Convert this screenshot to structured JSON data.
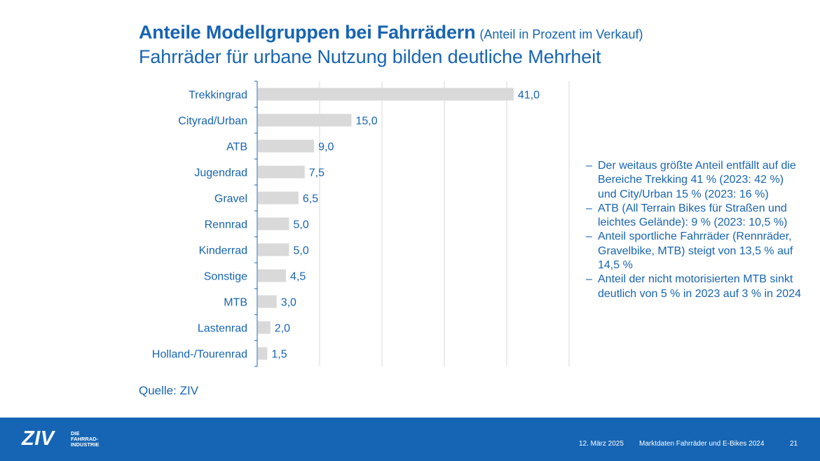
{
  "title": "Anteile Modellgruppen bei Fahrrädern",
  "title_note": "(Anteil in Prozent im Verkauf)",
  "subtitle": "Fahrräder für urbane Nutzung bilden deutliche Mehrheit",
  "chart_data": {
    "type": "bar",
    "orientation": "horizontal",
    "categories": [
      "Trekkingrad",
      "Cityrad/Urban",
      "ATB",
      "Jugendrad",
      "Gravel",
      "Rennrad",
      "Kinderrad",
      "Sonstige",
      "MTB",
      "Lastenrad",
      "Holland-/Tourenrad"
    ],
    "values": [
      41.0,
      15.0,
      9.0,
      7.5,
      6.5,
      5.0,
      5.0,
      4.5,
      3.0,
      2.0,
      1.5
    ],
    "data_labels": [
      "41,0",
      "15,0",
      "9,0",
      "7,5",
      "6,5",
      "5,0",
      "5,0",
      "4,5",
      "3,0",
      "2,0",
      "1,5"
    ],
    "xlim": [
      0,
      50
    ],
    "grid": true,
    "bar_color": "#d9d9d9",
    "label_color": "#1764b2",
    "axis_color": "#1764b2"
  },
  "bullets": [
    "Der weitaus größte Anteil entfällt auf die Bereiche Trekking 41 % (2023: 42 %) und City/Urban 15 % (2023: 16 %)",
    "ATB (All Terrain Bikes für Straßen und leichtes Gelände): 9 % (2023: 10,5 %)",
    "Anteil sportliche Fahrräder (Rennräder, Gravelbike, MTB) steigt von 13,5 % auf 14,5 %",
    "Anteil der nicht motorisierten MTB sinkt deutlich von 5 % in 2023 auf 3 % in 2024"
  ],
  "bullet_dash": "–",
  "source": "Quelle: ZIV",
  "footer": {
    "logo_text": "ZIV",
    "logo_sub_1": "DIE",
    "logo_sub_2": "FAHRRAD-",
    "logo_sub_3": "INDUSTRIE",
    "date": "12. März 2025",
    "text": "Marktdaten Fahrräder und E-Bikes 2024",
    "page": "21",
    "bg_color": "#1665b4"
  }
}
